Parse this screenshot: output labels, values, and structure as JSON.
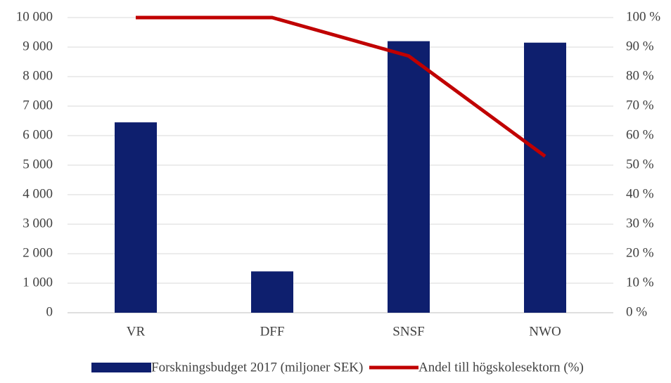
{
  "chart_data": {
    "type": "bar",
    "categories": [
      "VR",
      "DFF",
      "SNSF",
      "NWO"
    ],
    "series": [
      {
        "name": "Forskningsbudget 2017 (miljoner SEK)",
        "type": "bar",
        "color": "#0e1f6e",
        "values": [
          6450,
          1400,
          9200,
          9150
        ]
      },
      {
        "name": "Andel till högskolesektorn (%)",
        "type": "line",
        "color": "#c00000",
        "axis": "y2",
        "values": [
          100,
          100,
          87,
          53
        ]
      }
    ],
    "ylim": [
      0,
      10000
    ],
    "yticks": [
      0,
      {
        "value": 1000,
        "label": "1 000"
      },
      {
        "value": 2000,
        "label": "2 000"
      },
      {
        "value": 3000,
        "label": "3 000"
      },
      {
        "value": 4000,
        "label": "4 000"
      },
      {
        "value": 5000,
        "label": "5 000"
      },
      {
        "value": 6000,
        "label": "6 000"
      },
      {
        "value": 7000,
        "label": "7 000"
      },
      {
        "value": 8000,
        "label": "8 000"
      },
      {
        "value": 9000,
        "label": "9 000"
      },
      {
        "value": 10000,
        "label": "10 000"
      }
    ],
    "y2lim": [
      0,
      100
    ],
    "y2ticks": [
      {
        "value": 0,
        "label": "0 %"
      },
      {
        "value": 10,
        "label": "10 %"
      },
      {
        "value": 20,
        "label": "20 %"
      },
      {
        "value": 30,
        "label": "30 %"
      },
      {
        "value": 40,
        "label": "40 %"
      },
      {
        "value": 50,
        "label": "50 %"
      },
      {
        "value": 60,
        "label": "60 %"
      },
      {
        "value": 70,
        "label": "70 %"
      },
      {
        "value": 80,
        "label": "80 %"
      },
      {
        "value": 90,
        "label": "90 %"
      },
      {
        "value": 100,
        "label": "100 %"
      }
    ],
    "grid": true,
    "legend": "bottom"
  }
}
